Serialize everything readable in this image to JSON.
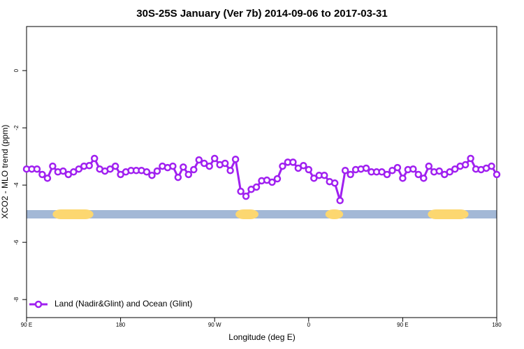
{
  "chart_data": {
    "type": "line",
    "title": "30S-25S January (Ver 7b)   2014-09-06 to 2017-03-31",
    "xlabel": "Longitude (deg E)",
    "ylabel": "XCO2 - MLO trend (ppm)",
    "x": [
      90,
      95,
      100,
      105,
      110,
      115,
      120,
      125,
      130,
      135,
      140,
      145,
      150,
      155,
      160,
      165,
      170,
      175,
      180,
      185,
      190,
      195,
      200,
      205,
      210,
      215,
      220,
      225,
      230,
      235,
      240,
      245,
      250,
      255,
      260,
      265,
      270,
      275,
      280,
      285,
      290,
      295,
      300,
      305,
      310,
      315,
      320,
      325,
      330,
      335,
      340,
      345,
      350,
      355,
      360,
      365,
      370,
      375,
      380,
      385,
      390,
      395,
      400,
      405,
      410,
      415,
      420,
      425,
      430,
      435,
      440,
      445,
      450,
      455,
      460,
      465,
      470,
      475,
      480,
      485,
      490,
      495,
      500,
      505,
      510,
      515,
      520,
      525,
      530,
      535,
      540
    ],
    "series": [
      {
        "name": "Land (Nadir&Glint) and Ocean (Glint)",
        "color": "#a020f0",
        "values": [
          -3.44,
          -3.44,
          -3.44,
          -3.63,
          -3.76,
          -3.34,
          -3.54,
          -3.51,
          -3.63,
          -3.54,
          -3.44,
          -3.34,
          -3.32,
          -3.07,
          -3.44,
          -3.51,
          -3.44,
          -3.34,
          -3.63,
          -3.54,
          -3.49,
          -3.49,
          -3.49,
          -3.54,
          -3.66,
          -3.51,
          -3.34,
          -3.39,
          -3.34,
          -3.73,
          -3.37,
          -3.63,
          -3.46,
          -3.12,
          -3.24,
          -3.34,
          -3.07,
          -3.29,
          -3.24,
          -3.49,
          -3.1,
          -4.22,
          -4.39,
          -4.15,
          -4.07,
          -3.85,
          -3.83,
          -3.9,
          -3.78,
          -3.34,
          -3.2,
          -3.2,
          -3.41,
          -3.32,
          -3.46,
          -3.76,
          -3.66,
          -3.66,
          -3.88,
          -3.93,
          -4.54,
          -3.49,
          -3.63,
          -3.46,
          -3.44,
          -3.41,
          -3.54,
          -3.54,
          -3.54,
          -3.63,
          -3.49,
          -3.39,
          -3.76,
          -3.46,
          -3.44,
          -3.63,
          -3.76,
          -3.34,
          -3.54,
          -3.51,
          -3.63,
          -3.54,
          -3.44,
          -3.34,
          -3.29,
          -3.07,
          -3.44,
          -3.46,
          -3.41,
          -3.34,
          -3.63
        ]
      }
    ],
    "surface_band": {
      "y": -5.02,
      "ocean_color": "#a3b8d6",
      "land_color": "#fcd770",
      "land_segments": [
        [
          115,
          154
        ],
        [
          290,
          312
        ],
        [
          376,
          393
        ],
        [
          474,
          513
        ]
      ]
    },
    "xlim": [
      90,
      540
    ],
    "xticks": [
      {
        "value": 90,
        "label": "90 E"
      },
      180,
      {
        "value": 270,
        "label": "90 W"
      },
      {
        "value": 360,
        "label": "0"
      },
      {
        "value": 450,
        "label": "90 E"
      },
      {
        "value": 540,
        "label": "180"
      }
    ],
    "ylim": [
      -8.63,
      1.54
    ],
    "yticks": [
      0,
      -2,
      -4,
      -6,
      -8
    ],
    "legend": "bottom-left"
  }
}
